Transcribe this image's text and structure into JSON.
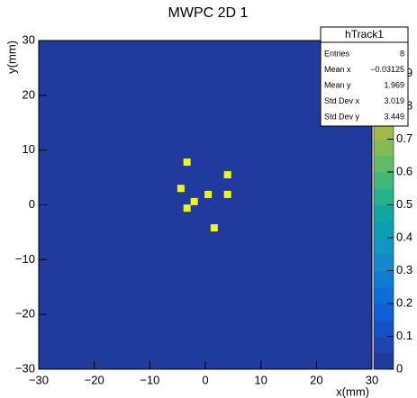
{
  "chart_data": {
    "type": "histogram2d",
    "title": "MWPC 2D 1",
    "x_label": "x(mm)",
    "y_label": "y(mm)",
    "x": [
      -3.3,
      4.0,
      -4.4,
      0.5,
      4.0,
      -2.0,
      -3.3,
      1.6
    ],
    "y": [
      7.8,
      5.5,
      3.0,
      1.9,
      1.9,
      0.6,
      -0.6,
      -4.2
    ],
    "values": [
      1,
      1,
      1,
      1,
      1,
      1,
      1,
      1
    ],
    "xlim": [
      -30,
      30
    ],
    "ylim": [
      -30,
      30
    ],
    "zlim": [
      0,
      1
    ],
    "xticks": [
      {
        "value": -30,
        "label": "−30"
      },
      {
        "value": -20,
        "label": "−20"
      },
      {
        "value": -10,
        "label": "−10"
      },
      0,
      10,
      20,
      30
    ],
    "yticks": [
      {
        "value": -30,
        "label": "−30"
      },
      {
        "value": -20,
        "label": "−20"
      },
      {
        "value": -10,
        "label": "−10"
      },
      0,
      10,
      20,
      30
    ],
    "zticks": [
      0,
      0.1,
      0.2,
      0.3,
      0.4,
      0.5,
      0.6,
      0.7,
      0.8,
      0.9,
      1
    ],
    "palette": [
      "#213a9d",
      "#1f44b0",
      "#1452c6",
      "#0d60d6",
      "#0a6fd8",
      "#0f7dd2",
      "#1389cb",
      "#1494c1",
      "#0c9eb3",
      "#0ea8a0",
      "#26b08c",
      "#44b678",
      "#63ba65",
      "#83bb55",
      "#a1ba49",
      "#bcb844",
      "#d2b843",
      "#e4bd3f",
      "#f2c938",
      "#f5f50f"
    ],
    "stats": {
      "title": "hTrack1",
      "rows": [
        {
          "name": "Entries",
          "value": 8
        },
        {
          "name": "Mean x",
          "value": -0.03125,
          "label": "−0.03125"
        },
        {
          "name": "Mean y",
          "value": 1.969
        },
        {
          "name": "Std Dev x",
          "value": 3.019
        },
        {
          "name": "Std Dev y",
          "value": 3.449
        }
      ]
    }
  }
}
